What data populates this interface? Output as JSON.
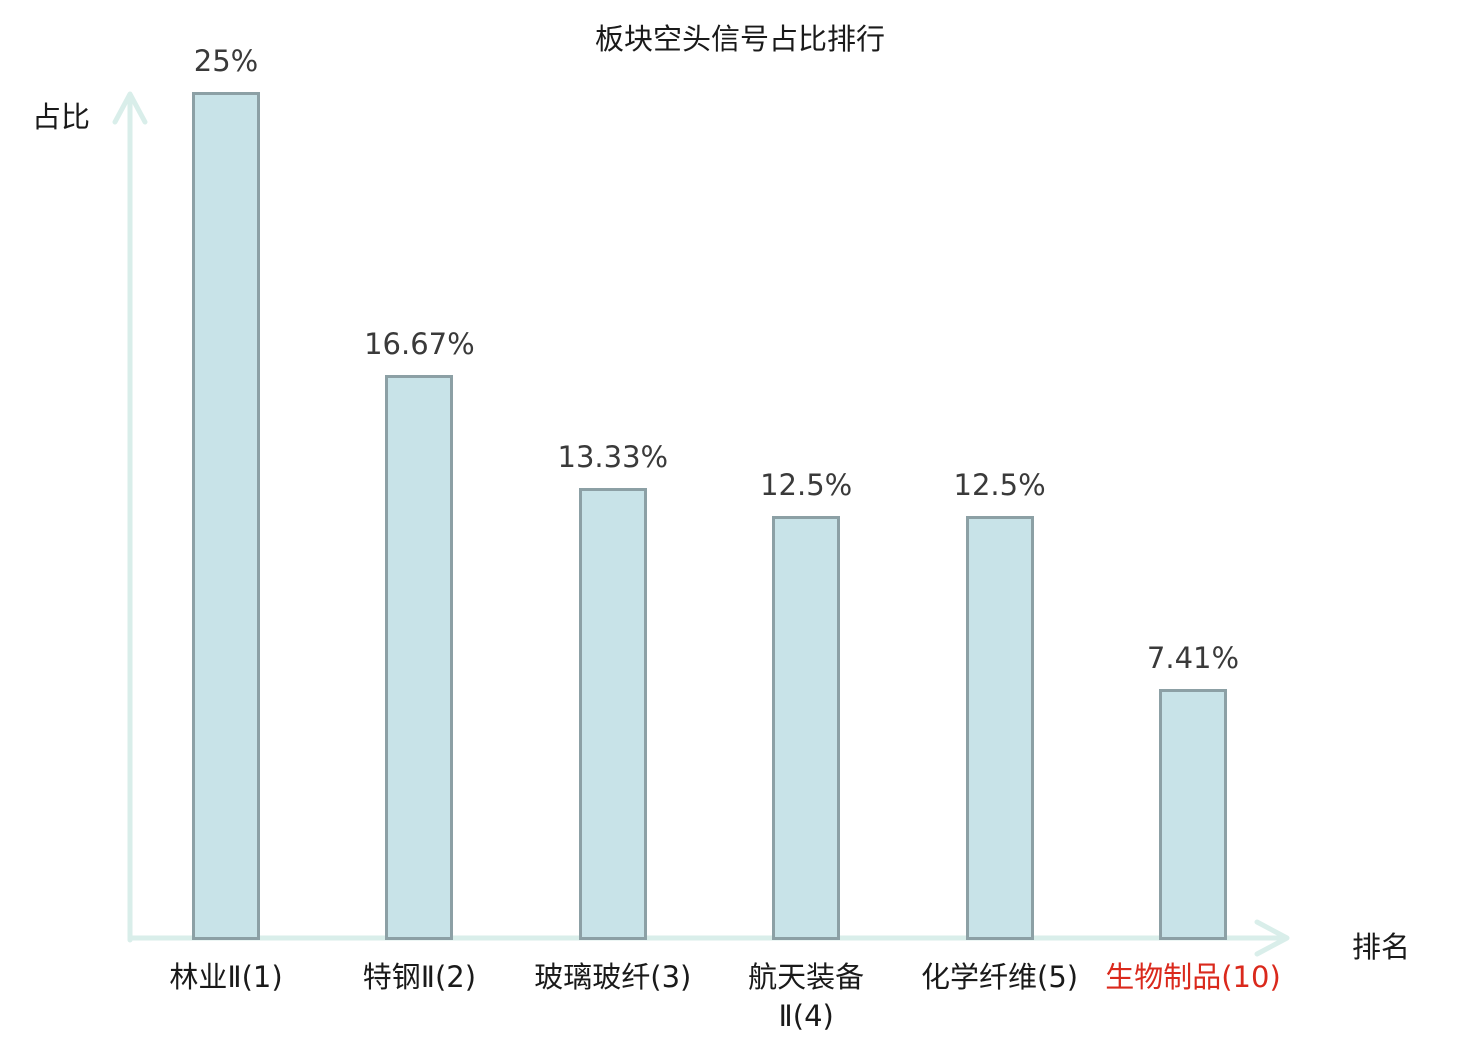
{
  "chart_data": {
    "type": "bar",
    "title": "板块空头信号占比排行",
    "xlabel": "排名",
    "ylabel": "占比",
    "ylim": [
      0,
      25
    ],
    "grid": false,
    "legend": "none",
    "categories": [
      "林业Ⅱ(1)",
      "特钢Ⅱ(2)",
      "玻璃玻纤(3)",
      "航天装备\nⅡ(4)",
      "化学纤维(5)",
      "生物制品(10)"
    ],
    "values": [
      25,
      16.67,
      13.33,
      12.5,
      12.5,
      7.41
    ],
    "value_labels": [
      "25%",
      "16.67%",
      "13.33%",
      "12.5%",
      "12.5%",
      "7.41%"
    ],
    "highlight_index": 5,
    "colors": {
      "bar_fill": "#c8e3e8",
      "bar_border": "#8ca0a5",
      "axis": "#d9eeea",
      "text": "#1a1a1a",
      "value_text": "#3a3a3a",
      "highlight_text": "#da291c"
    }
  }
}
